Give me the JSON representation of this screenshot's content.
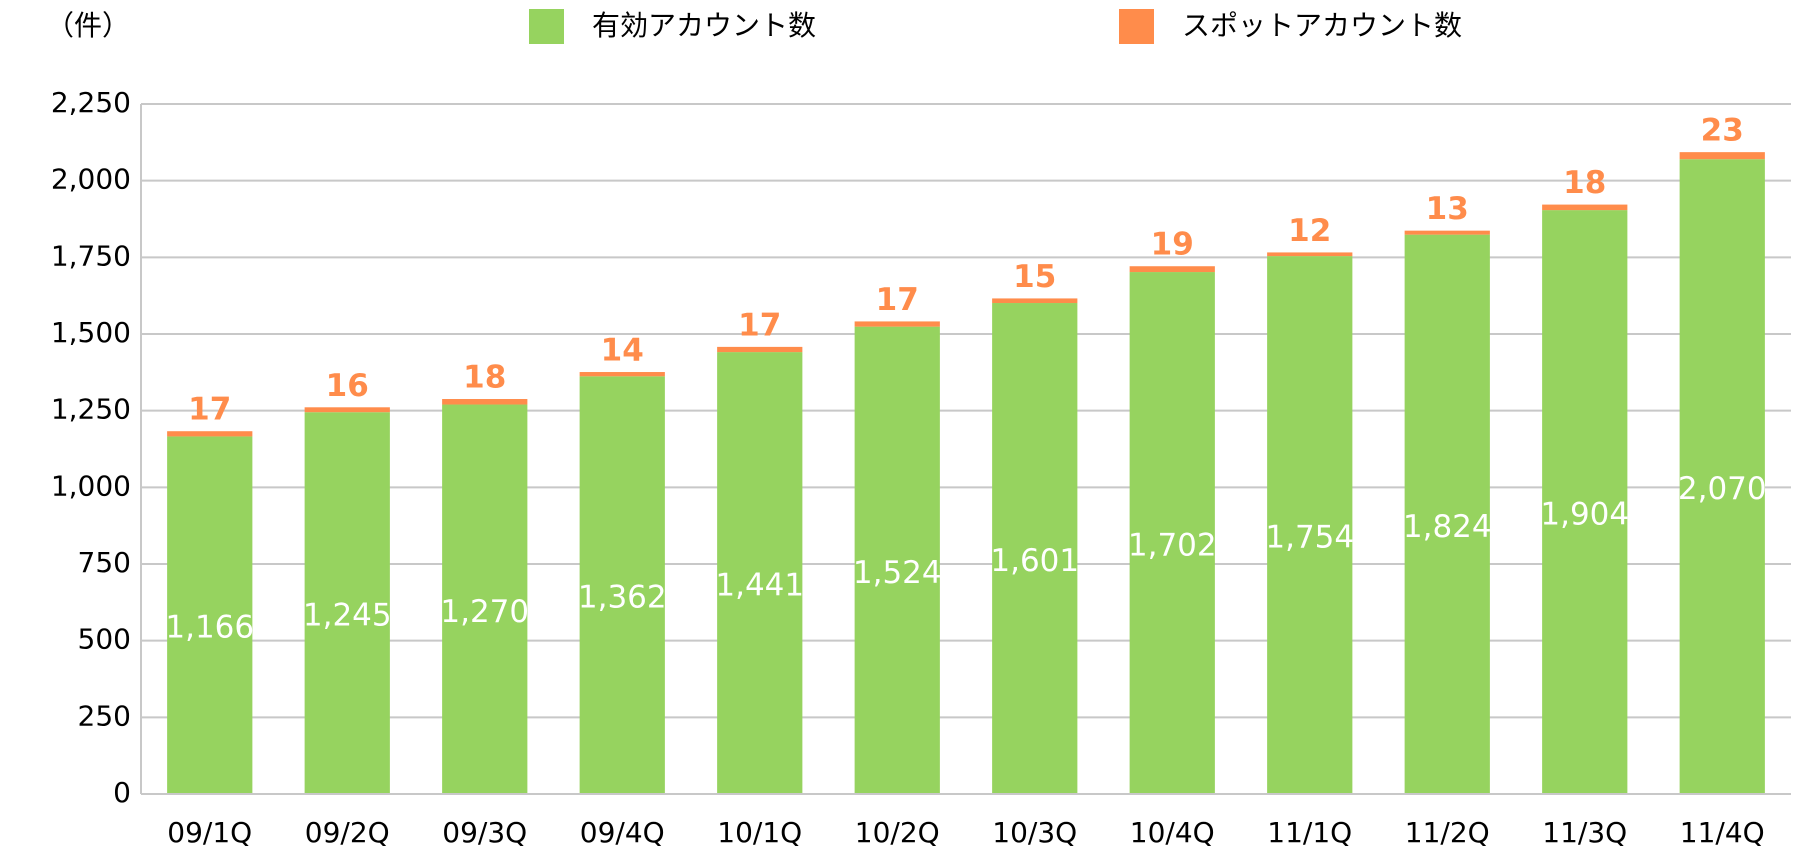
{
  "chart_data": {
    "type": "stacked_bar",
    "y_label": "（件）",
    "categories": [
      "09/1Q",
      "09/2Q",
      "09/3Q",
      "09/4Q",
      "10/1Q",
      "10/2Q",
      "10/3Q",
      "10/4Q",
      "11/1Q",
      "11/2Q",
      "11/3Q",
      "11/4Q"
    ],
    "series": [
      {
        "name": "有効アカウント数",
        "color": "#96d35f",
        "values": [
          1166,
          1245,
          1270,
          1362,
          1441,
          1524,
          1601,
          1702,
          1754,
          1824,
          1904,
          2070
        ],
        "value_labels": [
          "1,166",
          "1,245",
          "1,270",
          "1,362",
          "1,441",
          "1,524",
          "1,601",
          "1,702",
          "1,754",
          "1,824",
          "1,904",
          "2,070"
        ]
      },
      {
        "name": "スポットアカウント数",
        "color": "#ff8c4b",
        "values": [
          17,
          16,
          18,
          14,
          17,
          17,
          15,
          19,
          12,
          13,
          18,
          23
        ]
      }
    ],
    "ylim": [
      0,
      2250
    ],
    "yticks": [
      0,
      250,
      500,
      750,
      {
        "value": 1000,
        "label": "1,000"
      },
      {
        "value": 1250,
        "label": "1,250"
      },
      {
        "value": 1500,
        "label": "1,500"
      },
      {
        "value": 1750,
        "label": "1,750"
      },
      {
        "value": 2000,
        "label": "2,000"
      },
      {
        "value": 2250,
        "label": "2,250"
      }
    ],
    "grid": true,
    "legend": "top"
  }
}
